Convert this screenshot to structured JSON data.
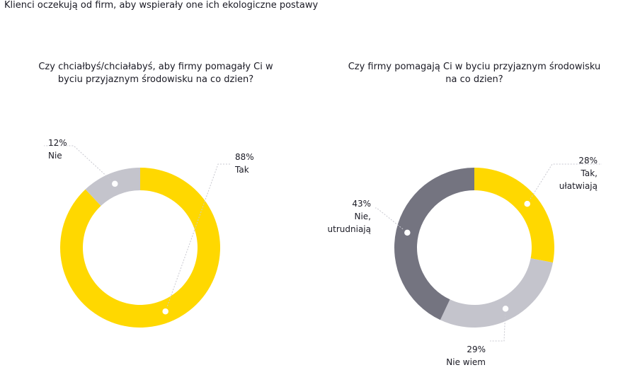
{
  "page": {
    "title": "Klienci oczekują od firm, aby wspierały one ich ekologiczne postawy"
  },
  "colors": {
    "yellow": "#ffd800",
    "light_gray": "#c4c4cc",
    "dark_gray": "#747480"
  },
  "chart_data": [
    {
      "type": "pie",
      "title": "Czy chciałbyś/chciałabyś, aby firmy pomagały Ci w byciu przyjaznym środowisku na co dzien?",
      "legend": "none",
      "slices": [
        {
          "label": "Tak",
          "value": 88,
          "value_label": "88%",
          "color": "#ffd800"
        },
        {
          "label": "Nie",
          "value": 12,
          "value_label": "12%",
          "color": "#c4c4cc"
        }
      ]
    },
    {
      "type": "pie",
      "title": "Czy firmy pomagają Ci w byciu przyjaznym środowisku na co dzien?",
      "legend": "none",
      "slices": [
        {
          "label": "Tak, ułatwiają",
          "value": 28,
          "value_label": "28%",
          "color": "#ffd800"
        },
        {
          "label": "Nie wiem",
          "value": 29,
          "value_label": "29%",
          "color": "#c4c4cc"
        },
        {
          "label": "Nie, utrudniają",
          "value": 43,
          "value_label": "43%",
          "color": "#747480"
        }
      ]
    }
  ]
}
